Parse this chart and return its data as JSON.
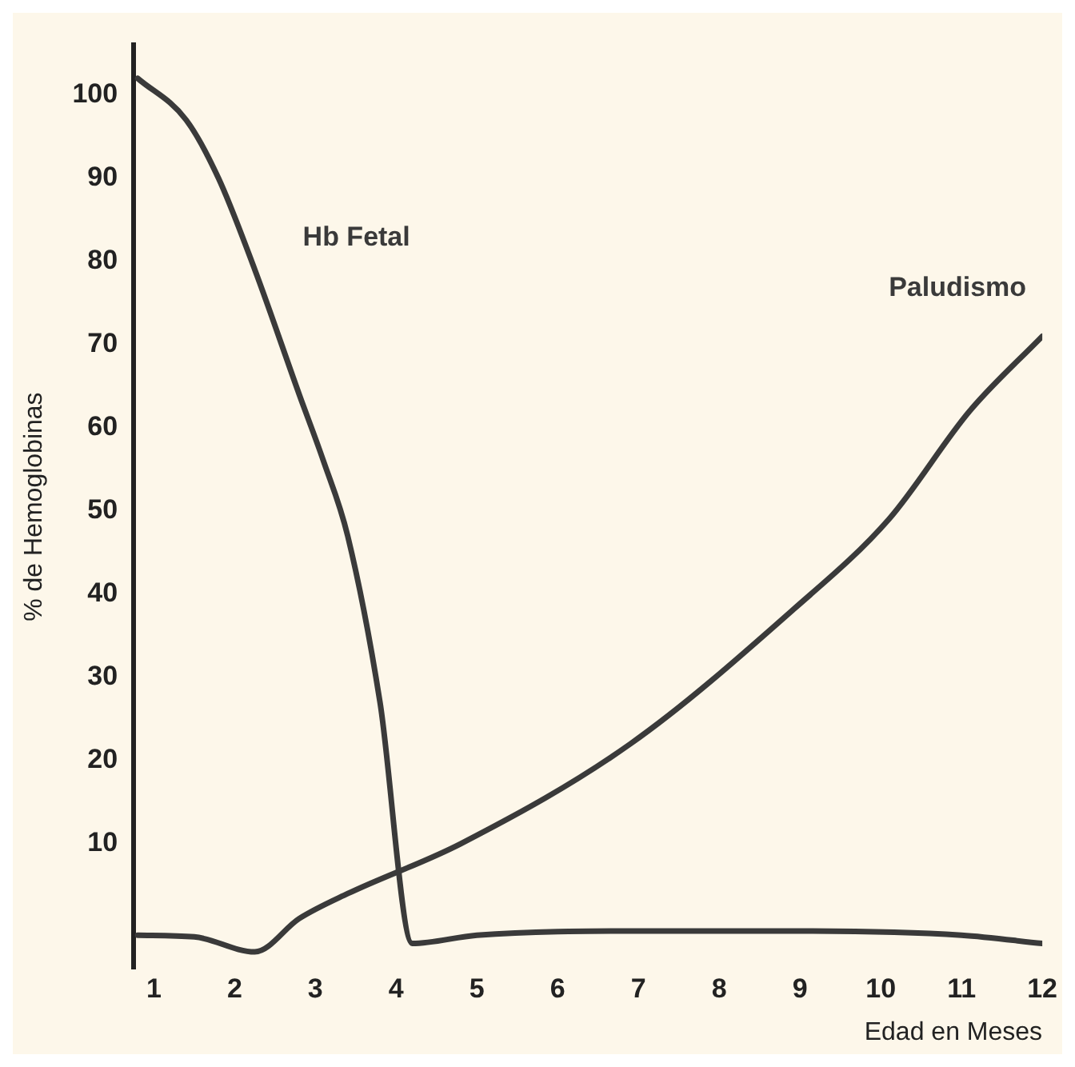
{
  "chart_data": {
    "type": "line",
    "xlabel": "Edad en Meses",
    "ylabel": "% de Hemoglobinas",
    "xlim": [
      0.75,
      12
    ],
    "xticks": [
      1,
      2,
      3,
      4,
      5,
      6,
      7,
      8,
      9,
      10,
      11,
      12
    ],
    "ylim": [
      -5,
      106
    ],
    "yticks": [
      10,
      20,
      30,
      40,
      50,
      60,
      70,
      80,
      90,
      100
    ],
    "grid": false,
    "legend": false,
    "marker": "none",
    "line_style": "solid",
    "series": [
      {
        "name": "Hb Fetal",
        "color": "#3a3a3a",
        "x": [
          0.8,
          1.4,
          1.8,
          2.25,
          2.8,
          3.1,
          3.4,
          3.8,
          4.2,
          5,
          7,
          9,
          11,
          12
        ],
        "values": [
          102,
          97,
          90,
          79,
          64,
          56,
          47,
          27,
          -2,
          -1,
          -0.5,
          -0.5,
          -1,
          -2
        ]
      },
      {
        "name": "Paludismo",
        "color": "#3a3a3a",
        "x": [
          0.8,
          1.5,
          2.25,
          2.8,
          3.4,
          4.8,
          6.9,
          8.9,
          10.1,
          11.1,
          12
        ],
        "values": [
          -1,
          -1.2,
          -3,
          1,
          4,
          10,
          22,
          38,
          49,
          62,
          71
        ]
      }
    ]
  }
}
